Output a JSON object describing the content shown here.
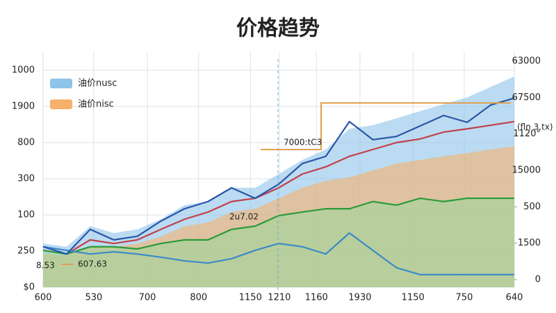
{
  "chart_data": {
    "type": "line",
    "title": "价格趋势",
    "x": [
      0,
      2,
      4,
      6,
      8,
      10,
      12,
      14,
      16,
      18,
      20,
      22,
      24,
      26,
      28,
      30,
      32,
      34,
      36,
      38,
      40
    ],
    "xlim": [
      0,
      40
    ],
    "xticks": [
      {
        "value": 0,
        "label": "600"
      },
      {
        "value": 4.3,
        "label": "530"
      },
      {
        "value": 8.85,
        "label": "700"
      },
      {
        "value": 13.2,
        "label": "800"
      },
      {
        "value": 17.6,
        "label": "1150"
      },
      {
        "value": 20.05,
        "label": "1210"
      },
      {
        "value": 23.2,
        "label": "1160"
      },
      {
        "value": 26.9,
        "label": "1930"
      },
      {
        "value": 31.4,
        "label": "1150"
      },
      {
        "value": 35.75,
        "label": "750"
      },
      {
        "value": 40,
        "label": "640"
      }
    ],
    "ylim": [
      0,
      6.5
    ],
    "yticks": [
      {
        "value": 0,
        "label": "$0"
      },
      {
        "value": 1,
        "label": "250"
      },
      {
        "value": 2,
        "label": "100"
      },
      {
        "value": 3,
        "label": "300"
      },
      {
        "value": 4,
        "label": "800"
      },
      {
        "value": 5,
        "label": "1900"
      },
      {
        "value": 6,
        "label": "1000"
      }
    ],
    "y2lim": [
      -0.21,
      6.25
    ],
    "y2ticks": [
      0,
      {
        "value": 1,
        "label": "1500"
      },
      {
        "value": 2,
        "label": "500"
      },
      {
        "value": 3,
        "label": "15000"
      },
      {
        "value": 4,
        "label": "1120°"
      },
      {
        "value": 5,
        "label": "67500"
      },
      {
        "value": 6,
        "label": "63000"
      }
    ],
    "grid": true,
    "legend": "top-left",
    "series": [
      {
        "name": "油价nusc",
        "kind": "area",
        "color": "#8ec3ea",
        "values": [
          1.21,
          1.12,
          1.69,
          1.5,
          1.6,
          1.88,
          2.27,
          2.37,
          2.75,
          2.75,
          3.13,
          3.52,
          3.81,
          4.38,
          4.48,
          4.67,
          4.87,
          5.06,
          5.25,
          5.54,
          5.83
        ]
      },
      {
        "name": "油价nisc",
        "kind": "area",
        "color": "#f5b06a",
        "values": [
          0.92,
          0.87,
          1.12,
          1.12,
          1.21,
          1.4,
          1.69,
          1.79,
          2.08,
          2.17,
          2.46,
          2.75,
          2.94,
          3.04,
          3.23,
          3.42,
          3.52,
          3.62,
          3.71,
          3.81,
          3.9
        ]
      },
      {
        "kind": "area",
        "color": "#9fd69a",
        "values": [
          1.02,
          0.92,
          1.12,
          1.12,
          1.06,
          1.21,
          1.31,
          1.31,
          1.6,
          1.69,
          1.98,
          2.08,
          2.17,
          2.17,
          2.37,
          2.27,
          2.46,
          2.37,
          2.46,
          2.46,
          2.46
        ]
      },
      {
        "kind": "line",
        "color": "#c0404a",
        "values": [
          1.02,
          0.92,
          1.31,
          1.21,
          1.31,
          1.6,
          1.88,
          2.08,
          2.37,
          2.46,
          2.75,
          3.13,
          3.33,
          3.62,
          3.81,
          4.0,
          4.1,
          4.29,
          4.38,
          4.48,
          4.58
        ]
      },
      {
        "kind": "line",
        "color": "#2a9a3a",
        "values": [
          1.02,
          0.92,
          1.12,
          1.12,
          1.06,
          1.21,
          1.31,
          1.31,
          1.6,
          1.69,
          1.98,
          2.08,
          2.17,
          2.17,
          2.37,
          2.27,
          2.46,
          2.37,
          2.46,
          2.46,
          2.46
        ]
      },
      {
        "kind": "line",
        "color": "#3a8ac8",
        "values": [
          1.12,
          1.02,
          0.92,
          0.98,
          0.92,
          0.83,
          0.73,
          0.67,
          0.79,
          1.02,
          1.21,
          1.12,
          0.92,
          1.5,
          1.02,
          0.54,
          0.35,
          0.35,
          0.35,
          0.35,
          0.35
        ]
      },
      {
        "kind": "line",
        "color": "#2a55a8",
        "values": [
          1.12,
          0.92,
          1.6,
          1.31,
          1.41,
          1.83,
          2.17,
          2.37,
          2.75,
          2.46,
          2.85,
          3.42,
          3.62,
          4.58,
          4.08,
          4.17,
          4.46,
          4.75,
          4.56,
          5.04,
          5.23
        ]
      }
    ],
    "annotations": [
      "7000:tC3",
      "2u7.02",
      "8.53",
      "607.63",
      "(fln 3.tx)"
    ]
  }
}
